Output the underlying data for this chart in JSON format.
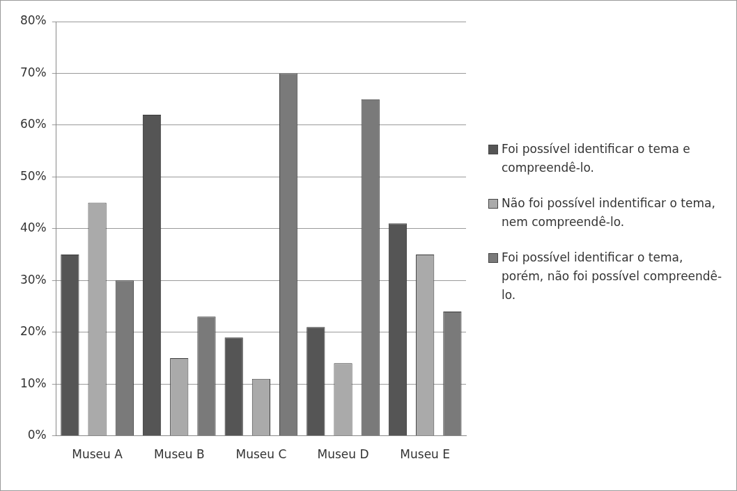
{
  "chart_data": {
    "type": "bar",
    "categories": [
      "Museu A",
      "Museu B",
      "Museu C",
      "Museu D",
      "Museu E"
    ],
    "series": [
      {
        "name": "Foi possível identificar o tema e compreendê-lo.",
        "color": "#555555",
        "values": [
          35,
          62,
          19,
          21,
          41
        ]
      },
      {
        "name": "Não foi possível indentificar o tema, nem compreendê-lo.",
        "color": "#aaaaaa",
        "values": [
          45,
          15,
          11,
          14,
          35
        ]
      },
      {
        "name": "Foi possível identificar o tema, porém, não foi possível compreendê-lo.",
        "color": "#7a7a7a",
        "values": [
          30,
          23,
          70,
          65,
          24
        ]
      }
    ],
    "ylim": [
      0,
      80
    ],
    "yticks": [
      {
        "value": 0,
        "label": "0%"
      },
      {
        "value": 10,
        "label": "10%"
      },
      {
        "value": 20,
        "label": "20%"
      },
      {
        "value": 30,
        "label": "30%"
      },
      {
        "value": 40,
        "label": "40%"
      },
      {
        "value": 50,
        "label": "50%"
      },
      {
        "value": 60,
        "label": "60%"
      },
      {
        "value": 70,
        "label": "70%"
      },
      {
        "value": 80,
        "label": "80%"
      }
    ],
    "grid": "y",
    "legend": "right"
  }
}
